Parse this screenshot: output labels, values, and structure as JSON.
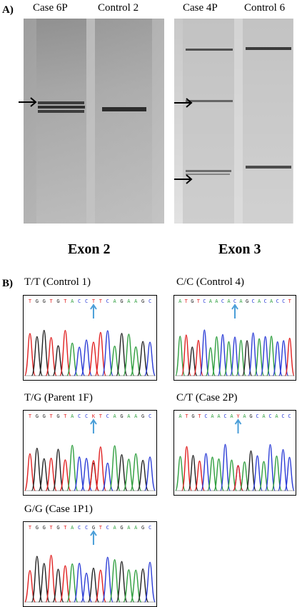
{
  "panel_a": {
    "letter": "A)",
    "exon2": {
      "lane_labels": [
        "Case 6P",
        "Control 2"
      ],
      "title": "Exon 2"
    },
    "exon3": {
      "lane_labels": [
        "Case 4P",
        "Control 6"
      ],
      "title": "Exon 3"
    }
  },
  "panel_b": {
    "letter": "B)",
    "chromatograms": [
      {
        "id": "control1",
        "title": "T/T (Control 1)",
        "sequence": "TGGTGTACCTTCAGAAGC",
        "marker_index": 9
      },
      {
        "id": "control4",
        "title": "C/C (Control 4)",
        "sequence": "ATGTCAACACAGCACACCT",
        "marker_index": 9
      },
      {
        "id": "parent1f",
        "title": "T/G (Parent 1F)",
        "sequence": "TGGTGTACCKTCAGAAGC",
        "marker_index": 9
      },
      {
        "id": "case2p",
        "title": "C/T (Case 2P)",
        "sequence": "ATGTCAACAYAGCACACC",
        "marker_index": 9
      },
      {
        "id": "case1p1",
        "title": "G/G (Case 1P1)",
        "sequence": "TGGTGTACCGTCAGAAGC",
        "marker_index": 9
      }
    ],
    "base_colors": {
      "A": "#2e9e3e",
      "C": "#2b3cd6",
      "G": "#222222",
      "T": "#e02020"
    },
    "marker_color": "#4a9ed8"
  }
}
